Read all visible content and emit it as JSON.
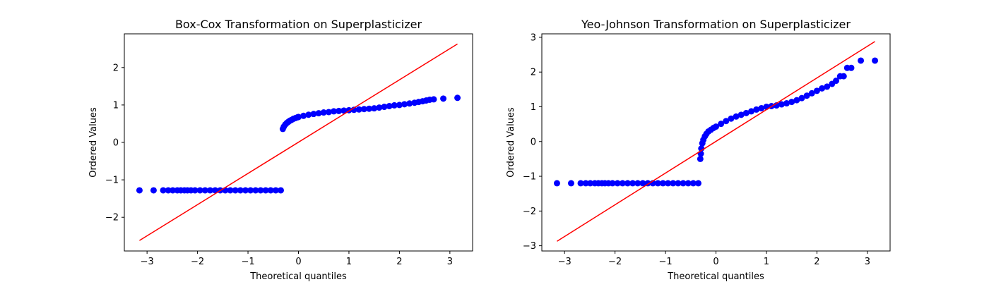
{
  "chart_data": [
    {
      "type": "scatter",
      "title": "Box-Cox Transformation on Superplasticizer",
      "xlabel": "Theoretical quantiles",
      "ylabel": "Ordered Values",
      "xlim": [
        -3.45,
        3.45
      ],
      "ylim": [
        -2.9,
        2.9
      ],
      "xticks": [
        -3,
        -2,
        -1,
        0,
        1,
        2,
        3
      ],
      "xtick_labels": [
        "−3",
        "−2",
        "−1",
        "0",
        "1",
        "2",
        "3"
      ],
      "yticks": [
        -2,
        -1,
        0,
        1,
        2
      ],
      "ytick_labels": [
        "−2",
        "−1",
        "0",
        "1",
        "2"
      ],
      "grid": false,
      "series": [
        {
          "kind": "points",
          "color": "#0000ff",
          "x": [
            -3.15,
            -2.87,
            -2.68,
            -2.58,
            -2.49,
            -2.4,
            -2.33,
            -2.26,
            -2.2,
            -2.13,
            -2.05,
            -1.95,
            -1.85,
            -1.75,
            -1.65,
            -1.55,
            -1.45,
            -1.35,
            -1.25,
            -1.15,
            -1.05,
            -0.95,
            -0.85,
            -0.75,
            -0.65,
            -0.55,
            -0.45,
            -0.35,
            -0.31,
            -0.29,
            -0.26,
            -0.23,
            -0.2,
            -0.17,
            -0.14,
            -0.1,
            -0.06,
            -0.02,
            0.0,
            0.1,
            0.2,
            0.3,
            0.4,
            0.5,
            0.6,
            0.7,
            0.8,
            0.9,
            1.0,
            1.1,
            1.2,
            1.3,
            1.4,
            1.5,
            1.6,
            1.7,
            1.8,
            1.9,
            2.0,
            2.1,
            2.2,
            2.3,
            2.38,
            2.46,
            2.53,
            2.6,
            2.68,
            2.87,
            3.15
          ],
          "y": [
            -1.28,
            -1.28,
            -1.28,
            -1.28,
            -1.28,
            -1.28,
            -1.28,
            -1.28,
            -1.28,
            -1.28,
            -1.28,
            -1.28,
            -1.28,
            -1.28,
            -1.28,
            -1.28,
            -1.28,
            -1.28,
            -1.28,
            -1.28,
            -1.28,
            -1.28,
            -1.28,
            -1.28,
            -1.28,
            -1.28,
            -1.28,
            -1.28,
            0.36,
            0.42,
            0.48,
            0.52,
            0.55,
            0.58,
            0.6,
            0.63,
            0.65,
            0.67,
            0.68,
            0.71,
            0.74,
            0.76,
            0.78,
            0.8,
            0.81,
            0.83,
            0.84,
            0.85,
            0.86,
            0.87,
            0.88,
            0.89,
            0.9,
            0.91,
            0.93,
            0.95,
            0.97,
            0.99,
            1.0,
            1.02,
            1.04,
            1.06,
            1.08,
            1.1,
            1.12,
            1.14,
            1.15,
            1.17,
            1.19
          ]
        },
        {
          "kind": "line",
          "color": "#ff0000",
          "x": [
            -3.15,
            3.15
          ],
          "y": [
            -2.62,
            2.63
          ]
        }
      ]
    },
    {
      "type": "scatter",
      "title": "Yeo-Johnson Transformation on Superplasticizer",
      "xlabel": "Theoretical quantiles",
      "ylabel": "Ordered Values",
      "xlim": [
        -3.45,
        3.45
      ],
      "ylim": [
        -3.15,
        3.1
      ],
      "xticks": [
        -3,
        -2,
        -1,
        0,
        1,
        2,
        3
      ],
      "xtick_labels": [
        "−3",
        "−2",
        "−1",
        "0",
        "1",
        "2",
        "3"
      ],
      "yticks": [
        -3,
        -2,
        -1,
        0,
        1,
        2,
        3
      ],
      "ytick_labels": [
        "−3",
        "−2",
        "−1",
        "0",
        "1",
        "2",
        "3"
      ],
      "grid": false,
      "series": [
        {
          "kind": "points",
          "color": "#0000ff",
          "x": [
            -3.15,
            -2.87,
            -2.68,
            -2.58,
            -2.49,
            -2.4,
            -2.33,
            -2.26,
            -2.2,
            -2.13,
            -2.05,
            -1.95,
            -1.85,
            -1.75,
            -1.65,
            -1.55,
            -1.45,
            -1.35,
            -1.25,
            -1.15,
            -1.05,
            -0.95,
            -0.85,
            -0.75,
            -0.65,
            -0.55,
            -0.45,
            -0.35,
            -0.31,
            -0.3,
            -0.29,
            -0.27,
            -0.25,
            -0.22,
            -0.19,
            -0.15,
            -0.1,
            -0.05,
            0.0,
            0.1,
            0.2,
            0.3,
            0.4,
            0.5,
            0.6,
            0.7,
            0.8,
            0.9,
            1.0,
            1.1,
            1.2,
            1.3,
            1.4,
            1.5,
            1.6,
            1.7,
            1.8,
            1.9,
            2.0,
            2.1,
            2.2,
            2.3,
            2.38,
            2.46,
            2.53,
            2.6,
            2.68,
            2.87,
            3.15
          ],
          "y": [
            -1.2,
            -1.2,
            -1.2,
            -1.2,
            -1.2,
            -1.2,
            -1.2,
            -1.2,
            -1.2,
            -1.2,
            -1.2,
            -1.2,
            -1.2,
            -1.2,
            -1.2,
            -1.2,
            -1.2,
            -1.2,
            -1.2,
            -1.2,
            -1.2,
            -1.2,
            -1.2,
            -1.2,
            -1.2,
            -1.2,
            -1.2,
            -1.2,
            -0.5,
            -0.35,
            -0.2,
            -0.05,
            0.05,
            0.15,
            0.22,
            0.29,
            0.34,
            0.39,
            0.43,
            0.51,
            0.59,
            0.66,
            0.72,
            0.77,
            0.82,
            0.87,
            0.92,
            0.96,
            1.0,
            1.02,
            1.04,
            1.07,
            1.1,
            1.14,
            1.19,
            1.25,
            1.32,
            1.39,
            1.46,
            1.53,
            1.58,
            1.66,
            1.75,
            1.88,
            1.88,
            2.12,
            2.12,
            2.33,
            2.33
          ]
        },
        {
          "kind": "line",
          "color": "#ff0000",
          "x": [
            -3.15,
            3.15
          ],
          "y": [
            -2.87,
            2.88
          ]
        }
      ]
    }
  ]
}
